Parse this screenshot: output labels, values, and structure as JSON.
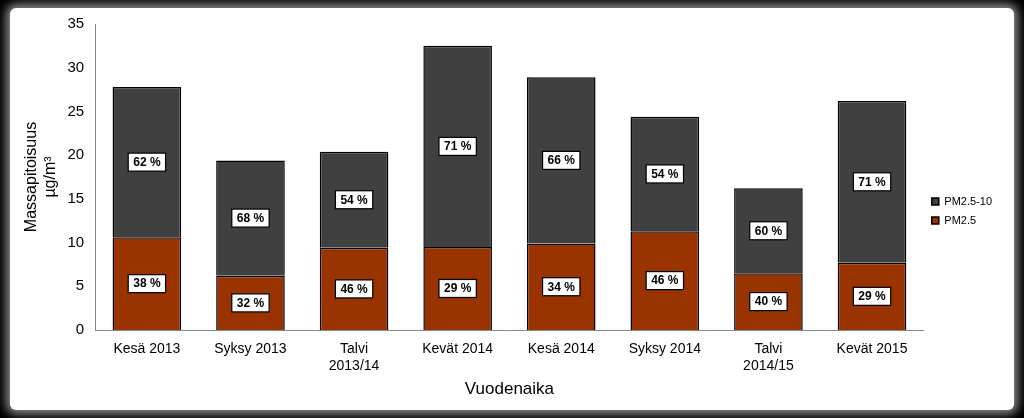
{
  "chart_data": {
    "type": "bar",
    "stacked": true,
    "categories": [
      "Kesä 2013",
      "Syksy 2013",
      "Talvi 2013/14",
      "Kevät 2014",
      "Kesä 2014",
      "Syksy 2014",
      "Talvi 2014/15",
      "Kevät 2015"
    ],
    "series": [
      {
        "name": "PM2.5",
        "color": "#993300",
        "values": [
          10.6,
          6.2,
          9.4,
          9.5,
          9.9,
          11.3,
          6.5,
          7.7
        ],
        "share_labels": [
          "38 %",
          "32 %",
          "46 %",
          "29 %",
          "34 %",
          "46 %",
          "40 %",
          "29 %"
        ]
      },
      {
        "name": "PM2.5-10",
        "color": "#404040",
        "values": [
          17.2,
          13.2,
          11.0,
          23.0,
          19.0,
          13.1,
          9.7,
          18.5
        ],
        "share_labels": [
          "62 %",
          "68 %",
          "54 %",
          "71 %",
          "66 %",
          "54 %",
          "60 %",
          "71 %"
        ]
      }
    ],
    "x_label": "Vuodenaika",
    "y_label": [
      "Massapitoisuus",
      "µg/m³"
    ],
    "ylim": [
      0,
      35
    ],
    "yticks": [
      0,
      5,
      10,
      15,
      20,
      25,
      30,
      35
    ],
    "grid": false,
    "legend": "right"
  }
}
